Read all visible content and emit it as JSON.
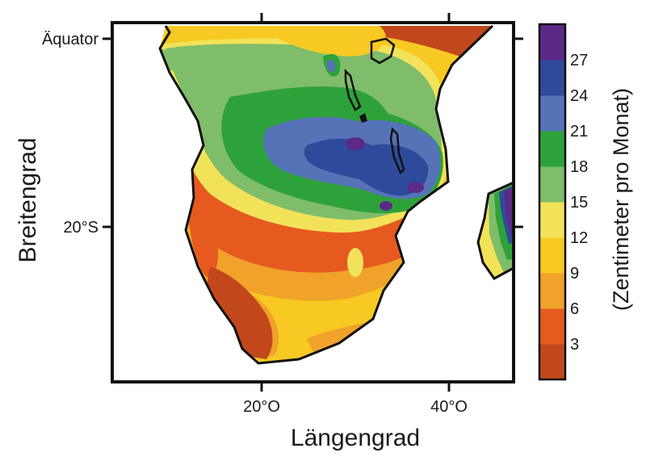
{
  "map": {
    "xlabel": "Längengrad",
    "ylabel": "Breitengrad",
    "x_ticks": [
      "20°O",
      "40°O"
    ],
    "y_ticks": [
      "Äquator",
      "20°S"
    ],
    "region": "Southern Africa and Madagascar",
    "lon_range": [
      4,
      47
    ],
    "lat_range": [
      2,
      -35
    ],
    "variable": "precipitation"
  },
  "colorbar": {
    "title": "(Zentimeter pro Monat)",
    "tick_labels": [
      "3",
      "6",
      "9",
      "12",
      "15",
      "18",
      "21",
      "24",
      "27"
    ],
    "bins": [
      {
        "range": "0–3",
        "color": "#c2471d"
      },
      {
        "range": "3–6",
        "color": "#e65a20"
      },
      {
        "range": "6–9",
        "color": "#f0a22a"
      },
      {
        "range": "9–12",
        "color": "#f7c922"
      },
      {
        "range": "12–15",
        "color": "#f2e25a"
      },
      {
        "range": "15–18",
        "color": "#7fbd6a"
      },
      {
        "range": "18–21",
        "color": "#2ea23a"
      },
      {
        "range": "21–24",
        "color": "#5673b8"
      },
      {
        "range": "24–27",
        "color": "#2e4a9a"
      },
      {
        "range": "27+",
        "color": "#5b2a86"
      }
    ]
  }
}
